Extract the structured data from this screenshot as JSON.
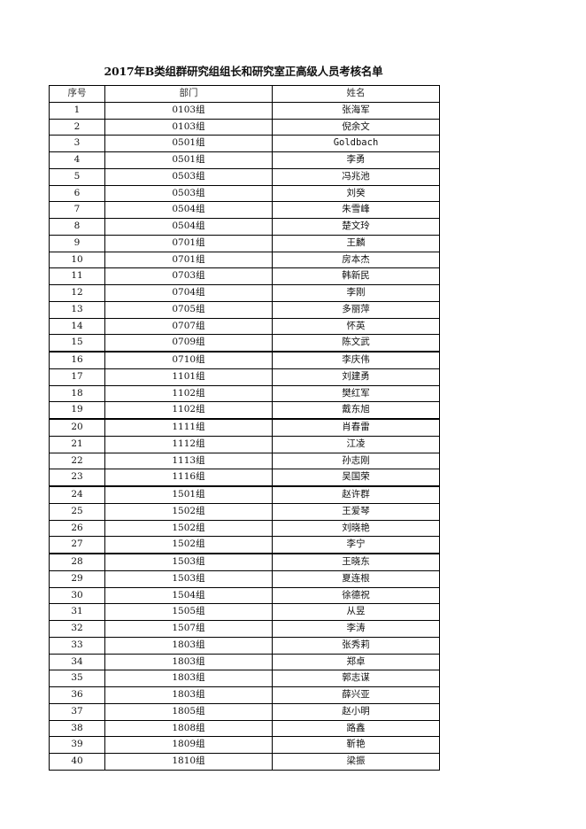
{
  "title": "2017年B类组群研究组组长和研究室正高级人员考核名单",
  "table": {
    "headers": [
      "序号",
      "部门",
      "姓名"
    ],
    "rows": [
      [
        "1",
        "0103组",
        "张海军"
      ],
      [
        "2",
        "0103组",
        "倪余文"
      ],
      [
        "3",
        "0501组",
        "Goldbach"
      ],
      [
        "4",
        "0501组",
        "李勇"
      ],
      [
        "5",
        "0503组",
        "冯兆池"
      ],
      [
        "6",
        "0503组",
        "刘癸"
      ],
      [
        "7",
        "0504组",
        "朱雪峰"
      ],
      [
        "8",
        "0504组",
        "楚文玲"
      ],
      [
        "9",
        "0701组",
        "王麟"
      ],
      [
        "10",
        "0701组",
        "房本杰"
      ],
      [
        "11",
        "0703组",
        "韩新民"
      ],
      [
        "12",
        "0704组",
        "李刚"
      ],
      [
        "13",
        "0705组",
        "多丽萍"
      ],
      [
        "14",
        "0707组",
        "怀英"
      ],
      [
        "15",
        "0709组",
        "陈文武"
      ],
      [
        "16",
        "0710组",
        "李庆伟"
      ],
      [
        "17",
        "1101组",
        "刘建勇"
      ],
      [
        "18",
        "1102组",
        "樊红军"
      ],
      [
        "19",
        "1102组",
        "戴东旭"
      ],
      [
        "20",
        "1111组",
        "肖春雷"
      ],
      [
        "21",
        "1112组",
        "江凌"
      ],
      [
        "22",
        "1113组",
        "孙志刚"
      ],
      [
        "23",
        "1116组",
        "吴国荣"
      ],
      [
        "24",
        "1501组",
        "赵许群"
      ],
      [
        "25",
        "1502组",
        "王爱琴"
      ],
      [
        "26",
        "1502组",
        "刘晓艳"
      ],
      [
        "27",
        "1502组",
        "李宁"
      ],
      [
        "28",
        "1503组",
        "王晓东"
      ],
      [
        "29",
        "1503组",
        "夏连根"
      ],
      [
        "30",
        "1504组",
        "徐德祝"
      ],
      [
        "31",
        "1505组",
        "从昱"
      ],
      [
        "32",
        "1507组",
        "李涛"
      ],
      [
        "33",
        "1803组",
        "张秀莉"
      ],
      [
        "34",
        "1803组",
        "郑卓"
      ],
      [
        "35",
        "1803组",
        "郭志谋"
      ],
      [
        "36",
        "1803组",
        "薛兴亚"
      ],
      [
        "37",
        "1805组",
        "赵小明"
      ],
      [
        "38",
        "1808组",
        "路鑫"
      ],
      [
        "39",
        "1809组",
        "靳艳"
      ],
      [
        "40",
        "1810组",
        "梁振"
      ]
    ]
  }
}
